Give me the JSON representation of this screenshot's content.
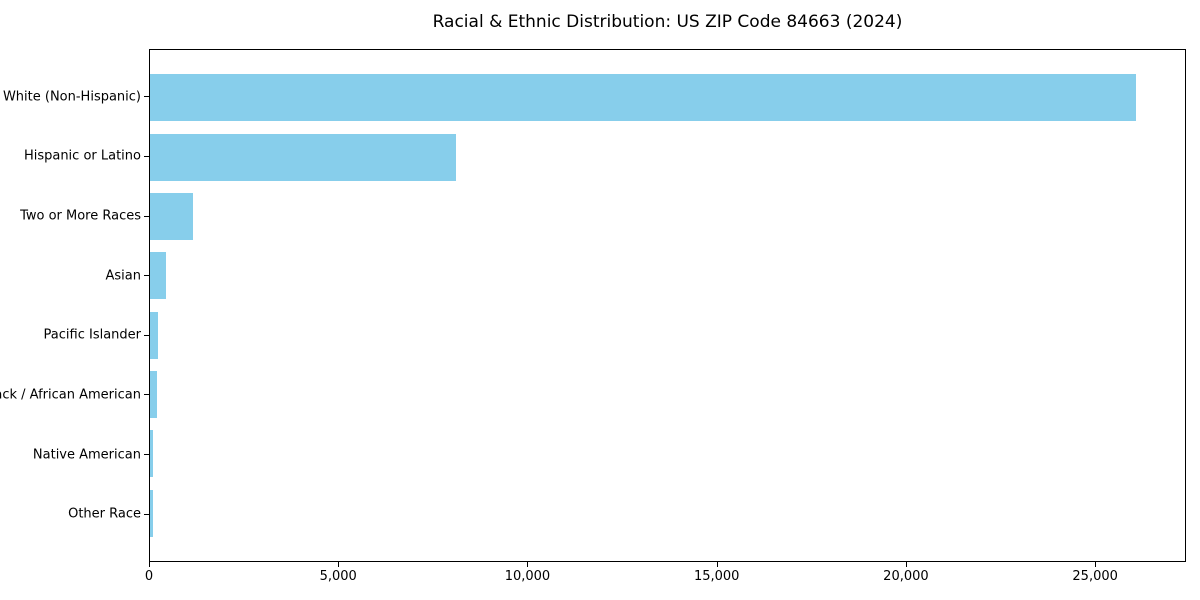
{
  "title": "Racial & Ethnic Distribution: US ZIP Code 84663 (2024)",
  "colors": {
    "bar": "#87CEEB",
    "axis": "#000000",
    "text": "#000000",
    "background": "#FFFFFF"
  },
  "chart_data": {
    "type": "bar",
    "orientation": "horizontal",
    "title": "Racial & Ethnic Distribution: US ZIP Code 84663 (2024)",
    "categories": [
      "White (Non-Hispanic)",
      "Hispanic or Latino",
      "Two or More Races",
      "Asian",
      "Pacific Islander",
      "Black / African American",
      "Native American",
      "Other Race"
    ],
    "values": [
      26100,
      8100,
      1140,
      420,
      210,
      185,
      90,
      80
    ],
    "xlabel": "",
    "ylabel": "",
    "xlim": [
      0,
      27400
    ],
    "x_ticks": [
      0,
      5000,
      10000,
      15000,
      20000,
      25000
    ],
    "x_tick_labels": [
      "0",
      "5,000",
      "10,000",
      "15,000",
      "20,000",
      "25,000"
    ],
    "bar_color": "#87CEEB",
    "grid": false,
    "legend": null
  }
}
